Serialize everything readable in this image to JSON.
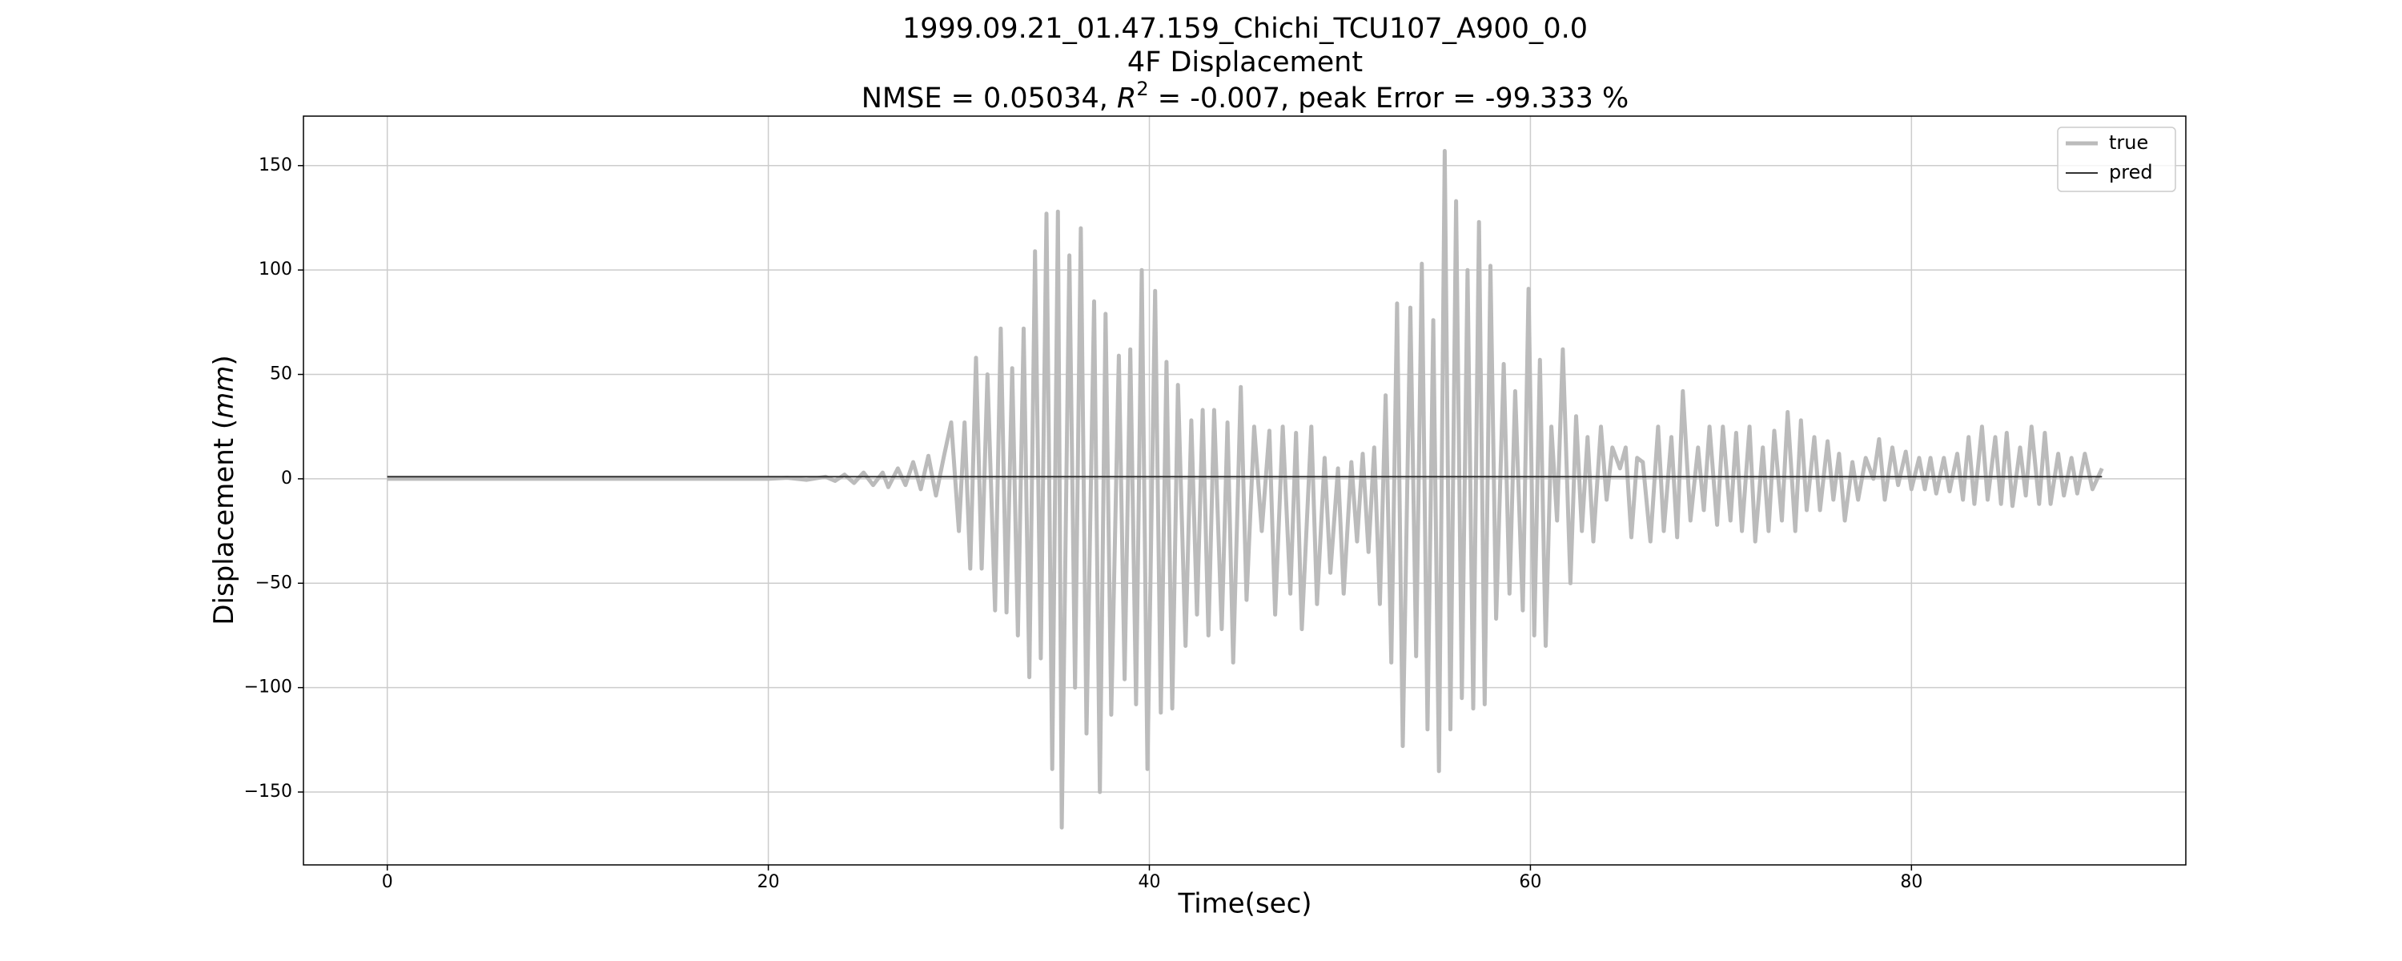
{
  "chart_data": {
    "type": "line",
    "title": "1999.09.21_01.47.159_Chichi_TCU107_A900_0.0",
    "subtitle": "4F Displacement",
    "metrics_parts": [
      "NMSE = 0.05034, ",
      "R",
      "2",
      " = -0.007, peak Error = -99.333 %"
    ],
    "xlabel": "Time(sec)",
    "ylabel_parts": [
      "Displacement (",
      "mm",
      ")"
    ],
    "xlim": [
      -4.4,
      94.4
    ],
    "ylim": [
      -184.9,
      173.7
    ],
    "xticks": [
      0,
      20,
      40,
      60,
      80
    ],
    "yticks": [
      {
        "value": -150,
        "label": "−150"
      },
      {
        "value": -100,
        "label": "−100"
      },
      {
        "value": -50,
        "label": "−50"
      },
      0,
      50,
      100,
      150
    ],
    "grid": true,
    "legend": "upper right",
    "series": [
      {
        "name": "true",
        "color": "#bbbbbb",
        "x": [
          0,
          10,
          20,
          21,
          22,
          23,
          23.5,
          24,
          24.5,
          25,
          25.5,
          26,
          26.3,
          26.8,
          27.2,
          27.6,
          28,
          28.4,
          28.8,
          29.2,
          29.6,
          30,
          30.3,
          30.6,
          30.9,
          31.2,
          31.5,
          31.9,
          32.2,
          32.5,
          32.8,
          33.1,
          33.4,
          33.7,
          34.0,
          34.3,
          34.6,
          34.9,
          35.2,
          35.4,
          35.8,
          36.1,
          36.4,
          36.7,
          37.1,
          37.4,
          37.7,
          38.0,
          38.4,
          38.7,
          39.0,
          39.3,
          39.6,
          39.9,
          40.3,
          40.6,
          40.9,
          41.2,
          41.5,
          41.9,
          42.2,
          42.5,
          42.8,
          43.1,
          43.4,
          43.8,
          44.1,
          44.4,
          44.8,
          45.1,
          45.5,
          45.9,
          46.3,
          46.6,
          47.0,
          47.4,
          47.7,
          48.0,
          48.5,
          48.8,
          49.2,
          49.5,
          49.9,
          50.2,
          50.6,
          50.9,
          51.2,
          51.5,
          51.8,
          52.1,
          52.4,
          52.7,
          53.0,
          53.3,
          53.7,
          54.0,
          54.3,
          54.6,
          54.9,
          55.2,
          55.5,
          55.8,
          56.1,
          56.4,
          56.7,
          57.0,
          57.3,
          57.6,
          57.9,
          58.2,
          58.6,
          58.9,
          59.2,
          59.6,
          59.9,
          60.2,
          60.5,
          60.8,
          61.1,
          61.4,
          61.7,
          62.1,
          62.4,
          62.7,
          63.0,
          63.3,
          63.7,
          64.0,
          64.3,
          64.7,
          65.0,
          65.3,
          65.6,
          65.9,
          66.3,
          66.7,
          67.0,
          67.4,
          67.7,
          68.0,
          68.4,
          68.8,
          69.1,
          69.4,
          69.8,
          70.1,
          70.5,
          70.8,
          71.1,
          71.5,
          71.8,
          72.2,
          72.5,
          72.8,
          73.2,
          73.5,
          73.9,
          74.2,
          74.5,
          74.9,
          75.2,
          75.6,
          75.9,
          76.2,
          76.5,
          76.9,
          77.2,
          77.6,
          78.0,
          78.3,
          78.6,
          79.0,
          79.3,
          79.7,
          80.0,
          80.4,
          80.7,
          81.0,
          81.3,
          81.7,
          82.0,
          82.4,
          82.7,
          83.0,
          83.3,
          83.7,
          84.0,
          84.4,
          84.7,
          85.0,
          85.3,
          85.7,
          86.0,
          86.3,
          86.7,
          87.0,
          87.3,
          87.7,
          88.0,
          88.4,
          88.7,
          89.1,
          89.5,
          90.0
        ],
        "values": [
          0,
          0,
          0,
          0.5,
          -0.5,
          1,
          -1,
          2,
          -2,
          3,
          -3,
          3,
          -4,
          5,
          -3,
          8,
          -5,
          11,
          -8,
          10,
          27,
          -25,
          27,
          -43,
          58,
          -43,
          50,
          -63,
          72,
          -64,
          53,
          -75,
          72,
          -95,
          109,
          -86,
          127,
          -139,
          128,
          -167,
          107,
          -100,
          120,
          -122,
          85,
          -150,
          79,
          -113,
          59,
          -96,
          62,
          -108,
          100,
          -139,
          90,
          -112,
          56,
          -110,
          45,
          -80,
          28,
          -65,
          33,
          -75,
          33,
          -72,
          27,
          -88,
          44,
          -58,
          25,
          -25,
          23,
          -65,
          25,
          -55,
          22,
          -72,
          25,
          -60,
          10,
          -45,
          5,
          -55,
          8,
          -30,
          12,
          -35,
          15,
          -60,
          40,
          -88,
          84,
          -128,
          82,
          -85,
          103,
          -120,
          76,
          -140,
          157,
          -120,
          133,
          -105,
          100,
          -110,
          123,
          -108,
          102,
          -67,
          55,
          -55,
          42,
          -63,
          91,
          -75,
          57,
          -80,
          25,
          -20,
          62,
          -50,
          30,
          -25,
          20,
          -30,
          25,
          -10,
          15,
          5,
          15,
          -28,
          10,
          8,
          -30,
          25,
          -25,
          20,
          -28,
          42,
          -20,
          15,
          -15,
          25,
          -22,
          25,
          -20,
          22,
          -25,
          25,
          -30,
          15,
          -25,
          23,
          -20,
          32,
          -25,
          28,
          -15,
          20,
          -15,
          18,
          -10,
          12,
          -20,
          8,
          -10,
          10,
          0,
          19,
          -10,
          15,
          -3,
          13,
          -5,
          10,
          -5,
          10,
          -7,
          10,
          -6,
          12,
          -10,
          20,
          -12,
          25,
          -10,
          20,
          -12,
          22,
          -13,
          15,
          -8,
          25,
          -12,
          22,
          -12,
          12,
          -8,
          10,
          -7,
          12,
          -5,
          5
        ]
      },
      {
        "name": "pred",
        "color": "#333333",
        "x": [
          0,
          90
        ],
        "values": [
          1,
          1
        ]
      }
    ]
  }
}
